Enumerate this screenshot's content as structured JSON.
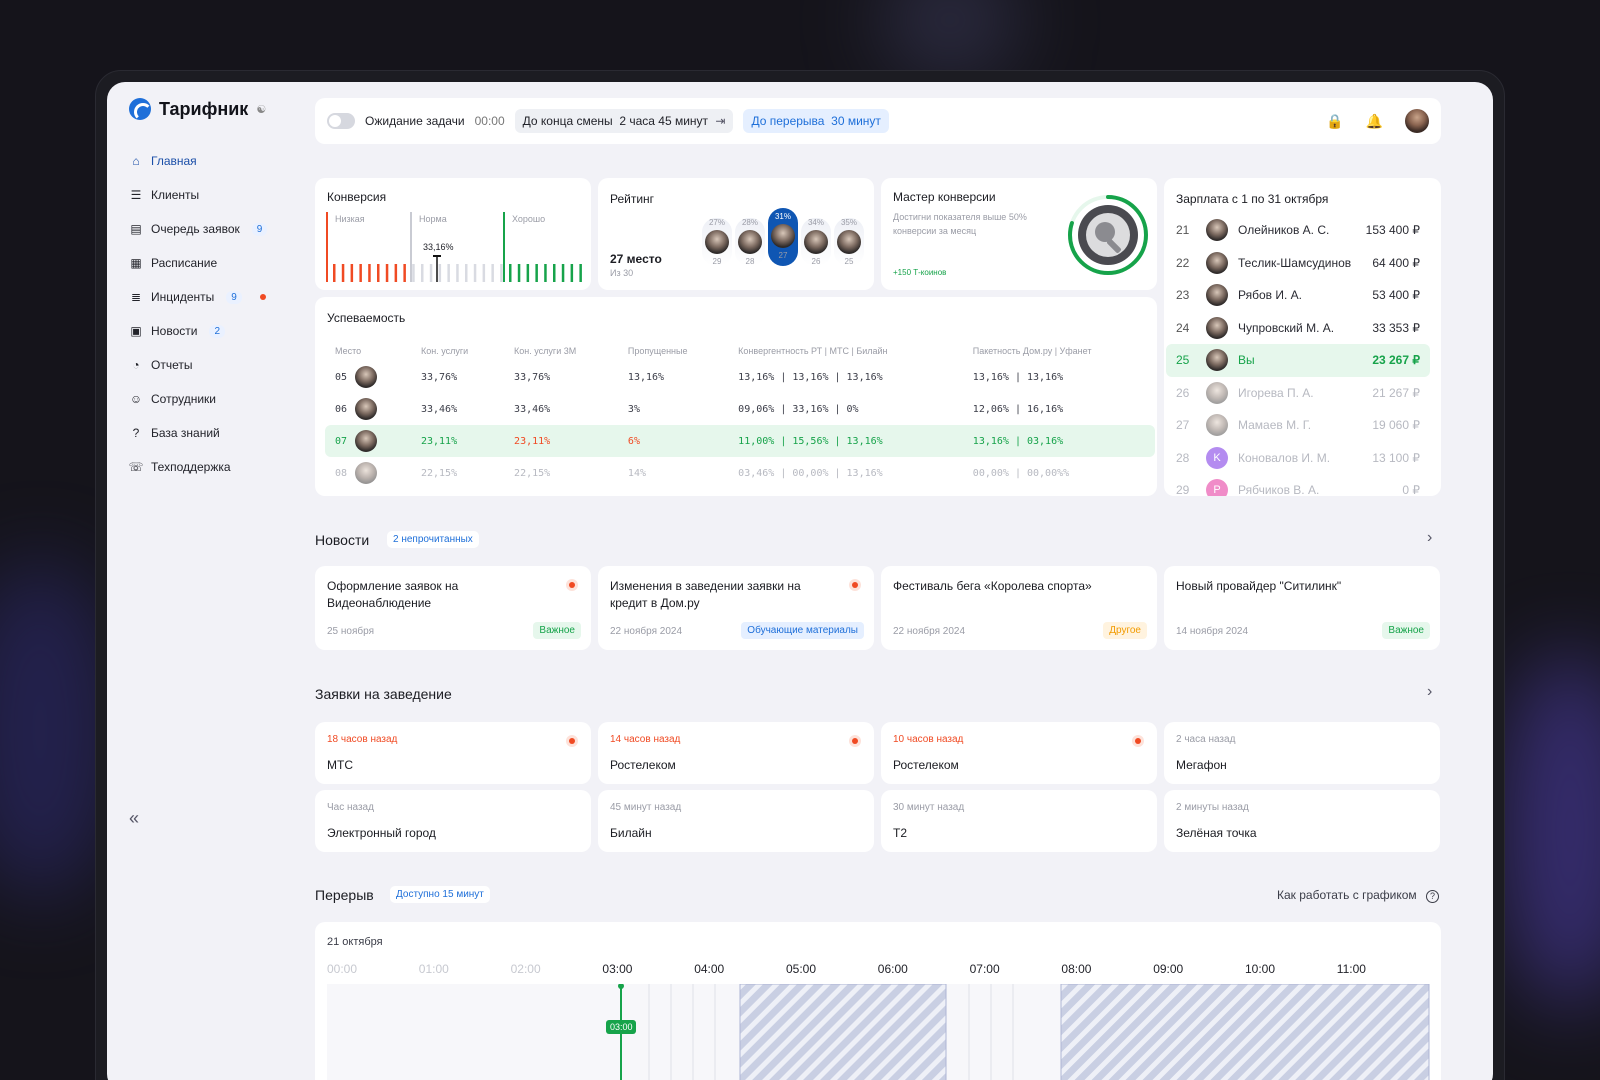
{
  "app": {
    "name": "Тарифник"
  },
  "nav": [
    {
      "label": "Главная",
      "icon": "home-icon",
      "active": true
    },
    {
      "label": "Клиенты",
      "icon": "clients-icon"
    },
    {
      "label": "Очередь заявок",
      "icon": "queue-icon",
      "badge": "9"
    },
    {
      "label": "Расписание",
      "icon": "calendar-icon"
    },
    {
      "label": "Инциденты",
      "icon": "incidents-icon",
      "badge": "9",
      "dot": true
    },
    {
      "label": "Новости",
      "icon": "news-icon",
      "badge": "2"
    },
    {
      "label": "Отчеты",
      "icon": "reports-icon"
    },
    {
      "label": "Сотрудники",
      "icon": "employees-icon"
    },
    {
      "label": "База знаний",
      "icon": "knowledge-icon"
    },
    {
      "label": "Техподдержка",
      "icon": "support-icon"
    }
  ],
  "topbar": {
    "waiting_label": "Ожидание задачи",
    "waiting_time": "00:00",
    "shift_label": "До конца смены",
    "shift_value": "2 часа 45 минут",
    "break_label": "До перерыва",
    "break_value": "30 минут"
  },
  "conversion": {
    "title": "Конверсия",
    "low": "Низкая",
    "norm": "Норма",
    "good": "Хорошо",
    "value": "33,16%"
  },
  "rating": {
    "title": "Рейтинг",
    "place": "27 место",
    "of": "Из 30",
    "columns": [
      {
        "pct": "27%",
        "place": "29"
      },
      {
        "pct": "28%",
        "place": "28"
      },
      {
        "pct": "31%",
        "place": "27",
        "me": true
      },
      {
        "pct": "34%",
        "place": "26"
      },
      {
        "pct": "35%",
        "place": "25"
      }
    ]
  },
  "master": {
    "title": "Мастер конверсии",
    "desc": "Достигни показателя выше 50% конверсии за месяц",
    "reward": "+150 Т-коинов",
    "progress": 0.8
  },
  "performance": {
    "title": "Успеваемость",
    "headers": [
      "Место",
      "Кон. услуги",
      "Кон. услуги 3М",
      "Пропущенные",
      "Конвергентность РТ | МТС | Билайн",
      "Пакетность Дом.ру | Уфанет"
    ],
    "rows": [
      {
        "place": "05",
        "c1": "33,76%",
        "c2": "33,76%",
        "missed": "13,16%",
        "conv": "13,16% | 13,16% | 13,16%",
        "pack": "13,16% | 13,16%"
      },
      {
        "place": "06",
        "c1": "33,46%",
        "c2": "33,46%",
        "missed": "3%",
        "conv": "09,06% | 33,16% | 0%",
        "pack": "12,06% | 16,16%"
      },
      {
        "place": "07",
        "c1": "23,11%",
        "c2": "23,11%",
        "missed": "6%",
        "conv": "11,00% | 15,56% | 13,16%",
        "pack": "13,16% | 03,16%",
        "me": true
      },
      {
        "place": "08",
        "c1": "22,15%",
        "c2": "22,15%",
        "missed": "14%",
        "conv": "03,46% | 00,00% | 13,16%",
        "pack": "00,00% | 00,00%%",
        "faded": true
      }
    ]
  },
  "salary": {
    "title": "Зарплата с 1 по 31 октября",
    "rows": [
      {
        "num": "21",
        "name": "Олейников А. С.",
        "amount": "153 400 ₽"
      },
      {
        "num": "22",
        "name": "Теслик-Шамсудинов",
        "amount": "64 400 ₽"
      },
      {
        "num": "23",
        "name": "Рябов И. А.",
        "amount": "53 400 ₽"
      },
      {
        "num": "24",
        "name": "Чупровский М. А.",
        "amount": "33 353 ₽"
      },
      {
        "num": "25",
        "name": "Вы",
        "amount": "23 267 ₽",
        "me": true
      },
      {
        "num": "26",
        "name": "Игорева П. А.",
        "amount": "21 267 ₽",
        "faded": true
      },
      {
        "num": "27",
        "name": "Мамаев М. Г.",
        "amount": "19 060 ₽",
        "faded": true
      },
      {
        "num": "28",
        "name": "Коновалов И. М.",
        "amount": "13 100 ₽",
        "faded": true,
        "letter": "K",
        "color": "#b48cf0"
      },
      {
        "num": "29",
        "name": "Рябчиков В. А.",
        "amount": "0 ₽",
        "faded": true,
        "letter": "Р",
        "color": "#f08cc8"
      }
    ]
  },
  "news": {
    "title": "Новости",
    "tag": "2 непрочитанных",
    "items": [
      {
        "title": "Оформление заявок на Видеонаблюдение",
        "date": "25 ноября",
        "chip": "Важное",
        "chip_color": "green",
        "unread": true
      },
      {
        "title": "Изменения в заведении заявки на кредит в Дом.ру",
        "date": "22 ноября 2024",
        "chip": "Обучающие материалы",
        "chip_color": "blue",
        "unread": true
      },
      {
        "title": "Фестиваль бега «Королева спорта»",
        "date": "22 ноября 2024",
        "chip": "Другое",
        "chip_color": "orange"
      },
      {
        "title": "Новый провайдер \"Ситилинк\"",
        "date": "14 ноября 2024",
        "chip": "Важное",
        "chip_color": "green"
      }
    ]
  },
  "requests": {
    "title": "Заявки на заведение",
    "items": [
      {
        "ago": "18 часов назад",
        "provider": "МТС",
        "urgent": true
      },
      {
        "ago": "14 часов назад",
        "provider": "Ростелеком",
        "urgent": true
      },
      {
        "ago": "10 часов назад",
        "provider": "Ростелеком",
        "urgent": true
      },
      {
        "ago": "2 часа назад",
        "provider": "Мегафон"
      },
      {
        "ago": "Час назад",
        "provider": "Электронный город"
      },
      {
        "ago": "45 минут назад",
        "provider": "Билайн"
      },
      {
        "ago": "30 минут назад",
        "provider": "T2"
      },
      {
        "ago": "2 минуты назад",
        "provider": "Зелёная точка"
      }
    ]
  },
  "breaks": {
    "title": "Перерыв",
    "tag": "Доступно 15 минут",
    "help": "Как работать с графиком",
    "date": "21 октября",
    "now": "03:00",
    "hours": [
      "00:00",
      "01:00",
      "02:00",
      "03:00",
      "04:00",
      "05:00",
      "06:00",
      "07:00",
      "08:00",
      "09:00",
      "10:00",
      "11:00"
    ]
  }
}
